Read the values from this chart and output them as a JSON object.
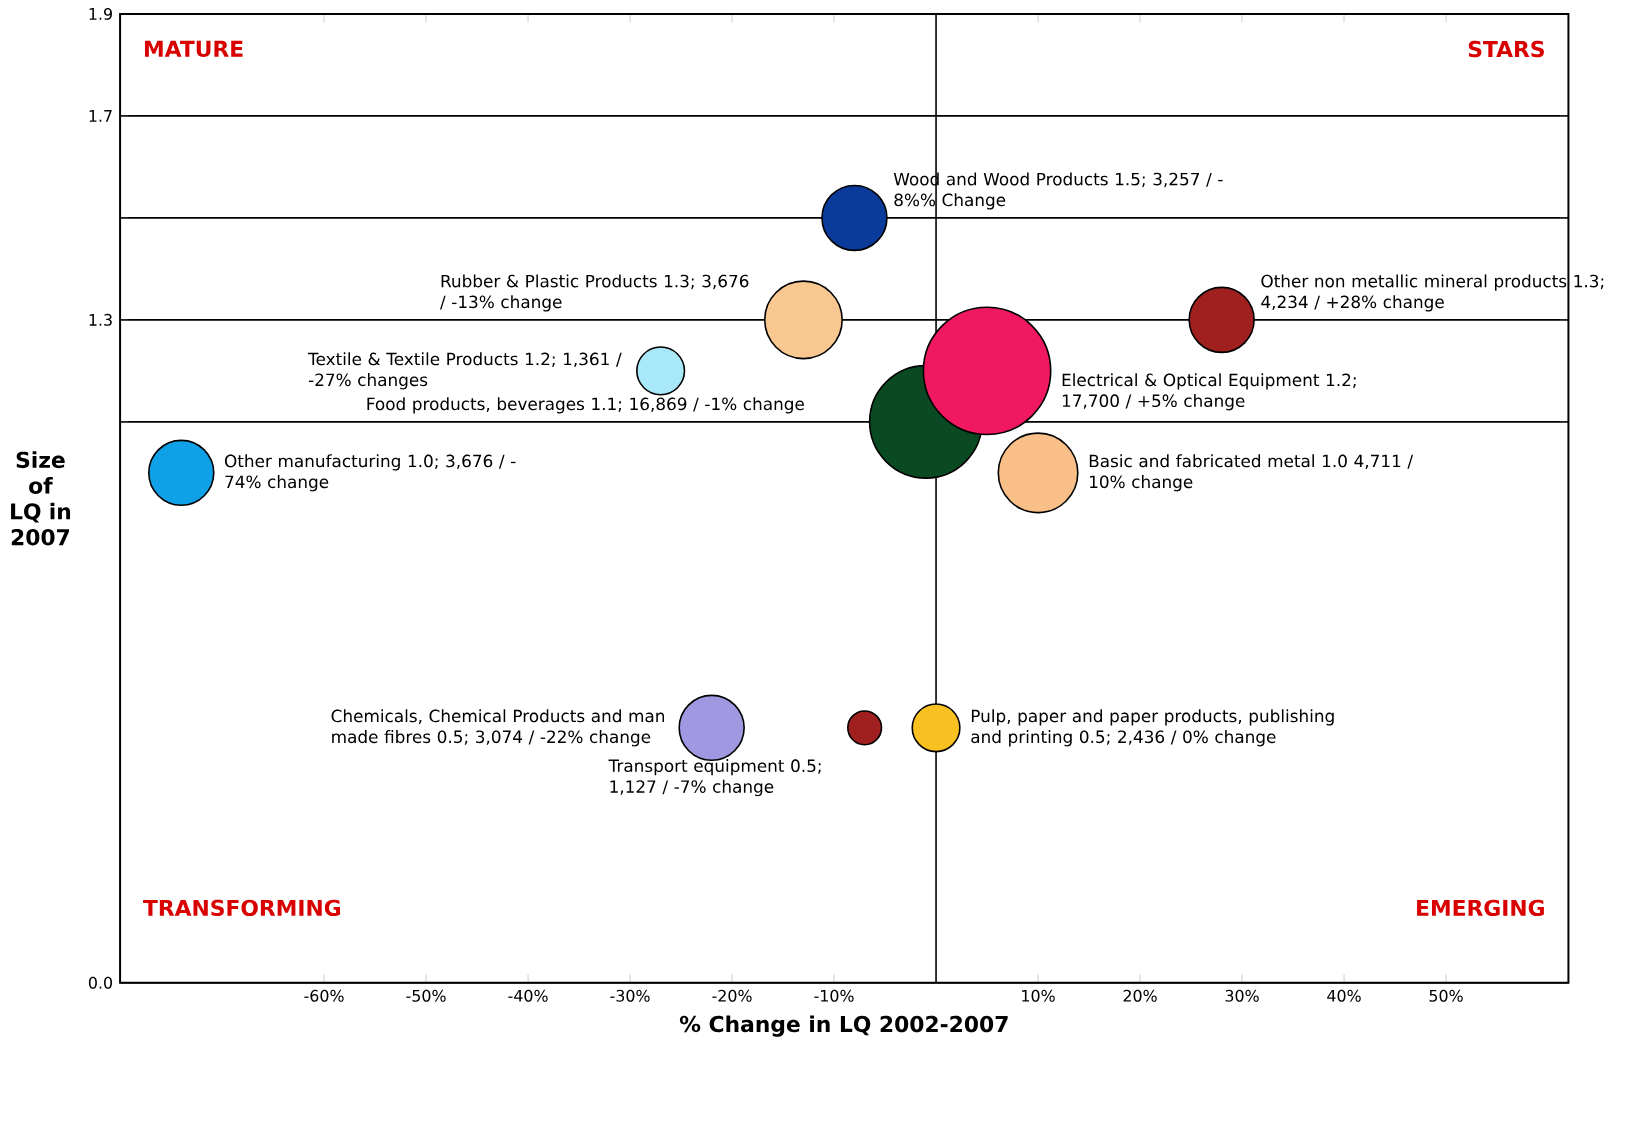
{
  "chart_data": {
    "type": "bubble",
    "xlabel": "% Change in LQ 2002-2007",
    "ylabel": "Size of LQ in 2007",
    "x": [
      -8,
      -13,
      -27,
      -74,
      -1,
      -7,
      -22,
      28,
      5,
      10,
      0
    ],
    "values": [
      1.5,
      1.3,
      1.2,
      1.0,
      1.1,
      0.5,
      0.5,
      1.3,
      1.2,
      1.0,
      0.5
    ],
    "sizes": [
      0.26,
      0.37,
      0.14,
      0.26,
      0.78,
      0.07,
      0.26,
      0.26,
      1,
      0.39,
      0.14
    ],
    "colors": [
      "#0a3a9a",
      "#f8c890",
      "#a8e8f8",
      "#10a0e8",
      "#0a4a22",
      "#a02020",
      "#a098e0",
      "#a02020",
      "#f01860",
      "#f8c088",
      "#f8c020"
    ],
    "xlim": [
      -80,
      62
    ],
    "xticks": [
      {
        "value": -60,
        "label": "-60%"
      },
      {
        "value": -50,
        "label": "-50%"
      },
      {
        "value": -40,
        "label": "-40%"
      },
      {
        "value": -30,
        "label": "-30%"
      },
      {
        "value": -20,
        "label": "-20%"
      },
      {
        "value": -10,
        "label": "-10%"
      },
      {
        "value": 10,
        "label": "10%"
      },
      {
        "value": 20,
        "label": "20%"
      },
      {
        "value": 30,
        "label": "30%"
      },
      {
        "value": 40,
        "label": "40%"
      },
      {
        "value": 50,
        "label": "50%"
      }
    ],
    "ylim": [
      0,
      1.9
    ],
    "yticks": [
      {
        "value": 0,
        "label": "0.0"
      },
      {
        "value": 1.1,
        "label": null
      },
      1.3,
      {
        "value": 1.5,
        "label": null
      },
      1.7,
      1.9
    ],
    "grid": "y",
    "ref_lines": [
      {
        "axis": "x",
        "value": 0
      }
    ],
    "annotations": [
      "Wood and Wood Products 1.5; 3,257 / -8%% Change",
      "Rubber & Plastic Products 1.3; 3,676 / -13% change",
      "Textile & Textile Products 1.2; 1,361 / -27% changes",
      "Other manufacturing 1.0; 3,676 / -74% change",
      "Food products, beverages 1.1; 16,869 / -1% change",
      "Transport equipment 0.5; 1,127 / -7% change",
      "Chemicals, Chemical Products and man made fibres 0.5; 3,074 / -22% change",
      "Other non metallic mineral products 1.3; 4,234 / +28% change",
      "Electrical & Optical Equipment 1.2; 17,700 / +5% change",
      "Basic and fabricated metal 1.0 4,711 / 10% change",
      "Pulp, paper and paper products, publishing and printing 0.5; 2,436 / 0% change",
      "MATURE",
      "STARS",
      "TRANSFORMING",
      "EMERGING"
    ]
  }
}
